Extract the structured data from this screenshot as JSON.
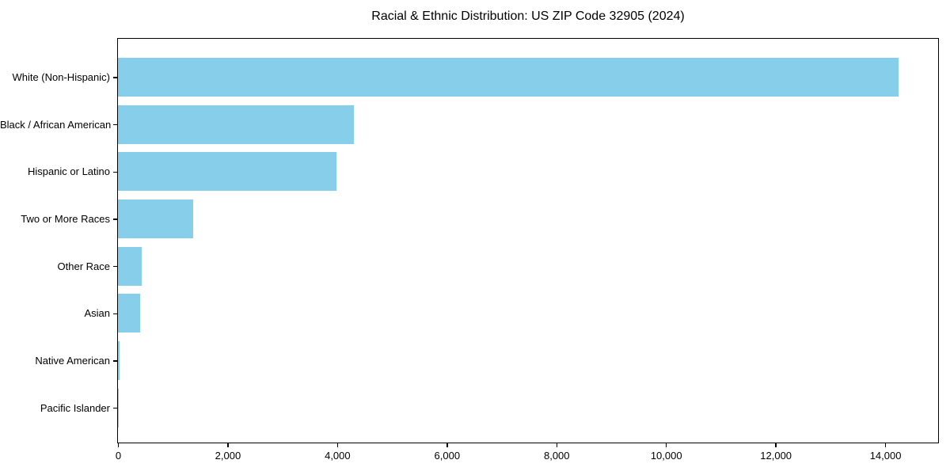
{
  "chart_data": {
    "type": "bar",
    "orientation": "horizontal",
    "title": "Racial & Ethnic Distribution: US ZIP Code 32905 (2024)",
    "categories": [
      "White (Non-Hispanic)",
      "Black / African American",
      "Hispanic or Latino",
      "Two or More Races",
      "Other Race",
      "Asian",
      "Native American",
      "Pacific Islander"
    ],
    "values": [
      14240,
      4310,
      3980,
      1370,
      430,
      405,
      30,
      5
    ],
    "xlabel": "",
    "ylabel": "",
    "xlim": [
      0,
      14952
    ],
    "x_ticks": [
      0,
      2000,
      4000,
      6000,
      8000,
      10000,
      12000,
      14000
    ],
    "x_tick_labels": [
      "0",
      "2,000",
      "4,000",
      "6,000",
      "8,000",
      "10,000",
      "12,000",
      "14,000"
    ],
    "grid": false,
    "legend": false,
    "bar_color": "#87CEEB",
    "axis_color": "#000000",
    "text_color": "#000000",
    "background_color": "#ffffff"
  }
}
